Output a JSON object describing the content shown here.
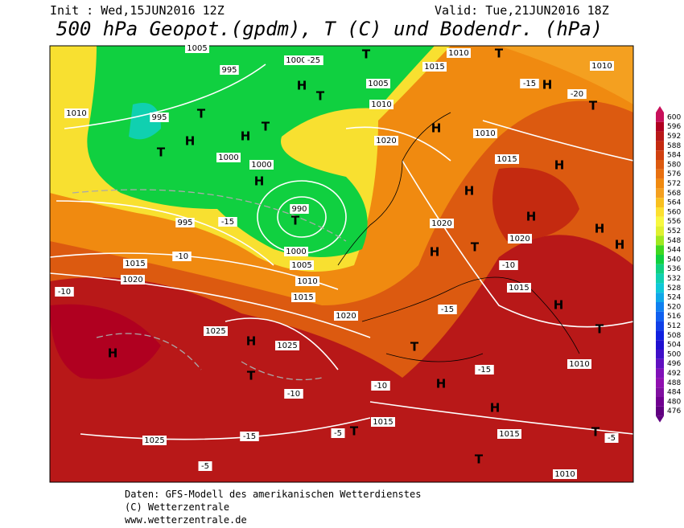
{
  "header": {
    "init": "Init : Wed,15JUN2016 12Z",
    "valid": "Valid: Tue,21JUN2016 18Z",
    "title": "500 hPa Geopot.(gpdm), T (C) und Bodendr. (hPa)"
  },
  "colorbar": {
    "levels": [
      600,
      596,
      592,
      588,
      584,
      580,
      576,
      572,
      568,
      564,
      560,
      556,
      552,
      548,
      544,
      540,
      536,
      532,
      528,
      524,
      520,
      516,
      512,
      508,
      504,
      500,
      496,
      492,
      488,
      484,
      480,
      476
    ],
    "colors": [
      "#c8105a",
      "#b00020",
      "#b81818",
      "#c42a10",
      "#d04010",
      "#dc5a10",
      "#e87010",
      "#f08a10",
      "#f4a020",
      "#f8c020",
      "#fce030",
      "#f8f840",
      "#e0f030",
      "#a0e820",
      "#40d820",
      "#10d040",
      "#10d080",
      "#10d0b0",
      "#10c8d8",
      "#10a8e8",
      "#1080f0",
      "#1060f0",
      "#1040e8",
      "#1020e0",
      "#2010d0",
      "#4010c8",
      "#6010c0",
      "#8010b8",
      "#9010b0",
      "#8010a0",
      "#700090",
      "#600080"
    ]
  },
  "map_labels": [
    "1005",
    "995",
    "1000",
    "-25",
    "T",
    "1005",
    "H",
    "T",
    "1010",
    "1015",
    "1010",
    "T",
    "1010",
    "-15",
    "H",
    "-20",
    "T",
    "1010",
    "995",
    "T",
    "H",
    "T",
    "H",
    "T",
    "1000",
    "1000",
    "H",
    "990",
    "T",
    "1000",
    "1005",
    "1010",
    "1015",
    "1020",
    "H",
    "1010",
    "1015",
    "H",
    "H",
    "1020",
    "H",
    "1020",
    "H",
    "H",
    "T",
    "H",
    "1015",
    "1020",
    "1015",
    "995",
    "H",
    "1025",
    "1025",
    "H",
    "T",
    "1025",
    "1015",
    "T",
    "H",
    "T",
    "1020",
    "1010",
    "T",
    "H",
    "H",
    "1015",
    "T",
    "1010",
    "T",
    "-10",
    "-10",
    "-15",
    "-10",
    "-15",
    "-5",
    "-10",
    "-5",
    "-15",
    "-10",
    "-15",
    "-5"
  ],
  "footer": [
    "Daten: GFS-Modell des amerikanischen Wetterdienstes",
    "(C) Wetterzentrale",
    "www.wetterzentrale.de"
  ]
}
